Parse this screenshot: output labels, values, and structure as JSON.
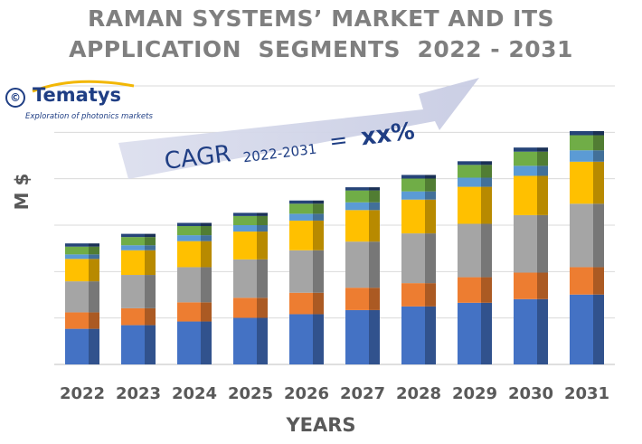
{
  "chart_data": {
    "type": "bar",
    "stacked": true,
    "title_line1": "RAMAN SYSTEMS’ MARKET AND ITS",
    "title_line2": "APPLICATION  SEGMENTS  2022 - 2031",
    "xlabel": "YEARS",
    "ylabel": "M $",
    "grid": true,
    "annotation": {
      "main": "CAGR",
      "sub": "2022-2031",
      "value": "xx%",
      "equals": "="
    },
    "categories": [
      "2022",
      "2023",
      "2024",
      "2025",
      "2026",
      "2027",
      "2028",
      "2029",
      "2030",
      "2031"
    ],
    "ylim": [
      0,
      6.1
    ],
    "series": [
      {
        "color": "#4472c4",
        "values": [
          0.78,
          0.86,
          0.94,
          1.02,
          1.1,
          1.19,
          1.27,
          1.35,
          1.43,
          1.53
        ]
      },
      {
        "color": "#ed7d31",
        "values": [
          0.36,
          0.37,
          0.42,
          0.44,
          0.47,
          0.49,
          0.51,
          0.56,
          0.58,
          0.6
        ]
      },
      {
        "color": "#a5a5a5",
        "values": [
          0.68,
          0.73,
          0.77,
          0.84,
          0.93,
          1.01,
          1.09,
          1.17,
          1.26,
          1.39
        ]
      },
      {
        "color": "#ffc000",
        "values": [
          0.49,
          0.54,
          0.57,
          0.61,
          0.65,
          0.69,
          0.74,
          0.81,
          0.86,
          0.92
        ]
      },
      {
        "color": "#5b9bd5",
        "values": [
          0.1,
          0.11,
          0.13,
          0.14,
          0.15,
          0.17,
          0.18,
          0.2,
          0.22,
          0.25
        ]
      },
      {
        "color": "#70ad47",
        "values": [
          0.17,
          0.18,
          0.2,
          0.2,
          0.22,
          0.26,
          0.28,
          0.28,
          0.31,
          0.33
        ]
      },
      {
        "color": "#264478",
        "values": [
          0.07,
          0.07,
          0.07,
          0.07,
          0.07,
          0.07,
          0.08,
          0.08,
          0.09,
          0.09
        ]
      }
    ]
  },
  "logo": {
    "symbol": "©",
    "name": "Tematys",
    "tagline": "Exploration of photonics markets"
  }
}
